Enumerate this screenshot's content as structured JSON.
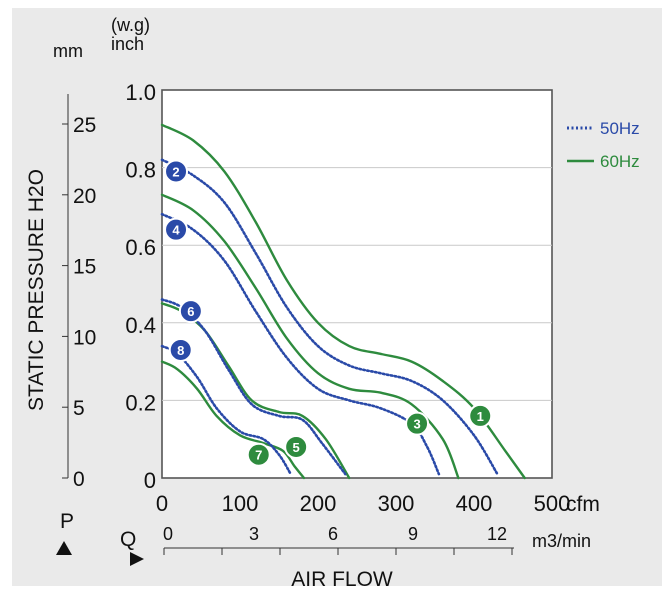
{
  "chart_data": {
    "type": "line",
    "title": "",
    "ylabel_outer": "STATIC PRESSURE H2O",
    "xlabel": "AIR FLOW",
    "units": {
      "mm": "mm",
      "wg_line1": "(w.g)",
      "wg_line2": "inch",
      "cfm": "cfm",
      "m3min": "m3/min",
      "p": "P",
      "q": "Q"
    },
    "xlim_cfm": [
      0,
      500
    ],
    "ylim_inch": [
      0,
      1.0
    ],
    "x_ticks_cfm": [
      "0",
      "100",
      "200",
      "300",
      "400",
      "500"
    ],
    "x_ticks_m3min": [
      "0",
      "3",
      "6",
      "9",
      "12"
    ],
    "y_ticks_inch": [
      "0",
      "0.2",
      "0.4",
      "0.6",
      "0.8",
      "1.0"
    ],
    "y_ticks_mm": [
      "0",
      "5",
      "10",
      "15",
      "20",
      "25"
    ],
    "grid": true,
    "legend": {
      "position": "right",
      "entries": [
        {
          "label": "50Hz",
          "style": "dotted",
          "color": "#2a4aa8"
        },
        {
          "label": "60Hz",
          "style": "solid",
          "color": "#2e8b3e"
        }
      ]
    },
    "series": [
      {
        "name": "1",
        "freq": "60Hz",
        "x": [
          0,
          40,
          80,
          120,
          160,
          200,
          240,
          280,
          320,
          360,
          400,
          440,
          465
        ],
        "y": [
          0.91,
          0.87,
          0.79,
          0.66,
          0.51,
          0.4,
          0.34,
          0.32,
          0.3,
          0.25,
          0.18,
          0.07,
          0.0
        ]
      },
      {
        "name": "2",
        "freq": "50Hz",
        "x": [
          0,
          40,
          80,
          120,
          160,
          200,
          240,
          280,
          320,
          360,
          400,
          430
        ],
        "y": [
          0.82,
          0.78,
          0.71,
          0.58,
          0.44,
          0.34,
          0.29,
          0.27,
          0.25,
          0.2,
          0.11,
          0.01
        ]
      },
      {
        "name": "3",
        "freq": "60Hz",
        "x": [
          0,
          40,
          80,
          120,
          160,
          200,
          240,
          280,
          320,
          360,
          380
        ],
        "y": [
          0.73,
          0.69,
          0.61,
          0.49,
          0.36,
          0.27,
          0.23,
          0.22,
          0.19,
          0.1,
          0.0
        ]
      },
      {
        "name": "4",
        "freq": "50Hz",
        "x": [
          0,
          40,
          80,
          120,
          160,
          200,
          240,
          280,
          320,
          340,
          355
        ],
        "y": [
          0.68,
          0.64,
          0.56,
          0.43,
          0.31,
          0.23,
          0.2,
          0.18,
          0.14,
          0.08,
          0.01
        ]
      },
      {
        "name": "5",
        "freq": "60Hz",
        "x": [
          0,
          25,
          55,
          85,
          115,
          150,
          180,
          210,
          240
        ],
        "y": [
          0.45,
          0.43,
          0.38,
          0.29,
          0.2,
          0.17,
          0.16,
          0.1,
          0.0
        ]
      },
      {
        "name": "6",
        "freq": "50Hz",
        "x": [
          0,
          25,
          55,
          85,
          115,
          150,
          180,
          205,
          235
        ],
        "y": [
          0.46,
          0.44,
          0.38,
          0.28,
          0.19,
          0.16,
          0.15,
          0.09,
          0.01
        ]
      },
      {
        "name": "7",
        "freq": "60Hz",
        "x": [
          0,
          20,
          45,
          70,
          100,
          130,
          155,
          170,
          182
        ],
        "y": [
          0.3,
          0.28,
          0.23,
          0.16,
          0.11,
          0.09,
          0.07,
          0.03,
          0.0
        ]
      },
      {
        "name": "8",
        "freq": "50Hz",
        "x": [
          0,
          20,
          45,
          70,
          100,
          130,
          150,
          165
        ],
        "y": [
          0.34,
          0.32,
          0.26,
          0.18,
          0.12,
          0.1,
          0.06,
          0.01
        ]
      }
    ],
    "badges": [
      {
        "label": "1",
        "freq": "60Hz",
        "x": 408,
        "y": 0.16
      },
      {
        "label": "2",
        "freq": "50Hz",
        "x": 18,
        "y": 0.79
      },
      {
        "label": "3",
        "freq": "60Hz",
        "x": 327,
        "y": 0.14
      },
      {
        "label": "4",
        "freq": "50Hz",
        "x": 18,
        "y": 0.64
      },
      {
        "label": "5",
        "freq": "60Hz",
        "x": 172,
        "y": 0.08
      },
      {
        "label": "6",
        "freq": "50Hz",
        "x": 37,
        "y": 0.43
      },
      {
        "label": "7",
        "freq": "60Hz",
        "x": 124,
        "y": 0.06
      },
      {
        "label": "8",
        "freq": "50Hz",
        "x": 24,
        "y": 0.33
      }
    ]
  }
}
